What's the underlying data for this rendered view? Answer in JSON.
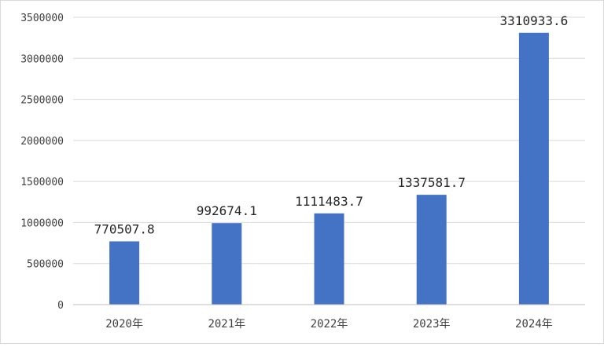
{
  "chart_data": {
    "type": "bar",
    "categories": [
      "2020年",
      "2021年",
      "2022年",
      "2023年",
      "2024年"
    ],
    "values": [
      770507.8,
      992674.1,
      1111483.7,
      1337581.7,
      3310933.6
    ],
    "data_labels": [
      "770507.8",
      "992674.1",
      "1111483.7",
      "1337581.7",
      "3310933.6"
    ],
    "yticks": [
      0,
      500000,
      1000000,
      1500000,
      2000000,
      2500000,
      3000000,
      3500000
    ],
    "ylim": [
      0,
      3500000
    ],
    "grid": true,
    "bar_color": "#4472c4",
    "grid_color": "#d9d9d9"
  }
}
